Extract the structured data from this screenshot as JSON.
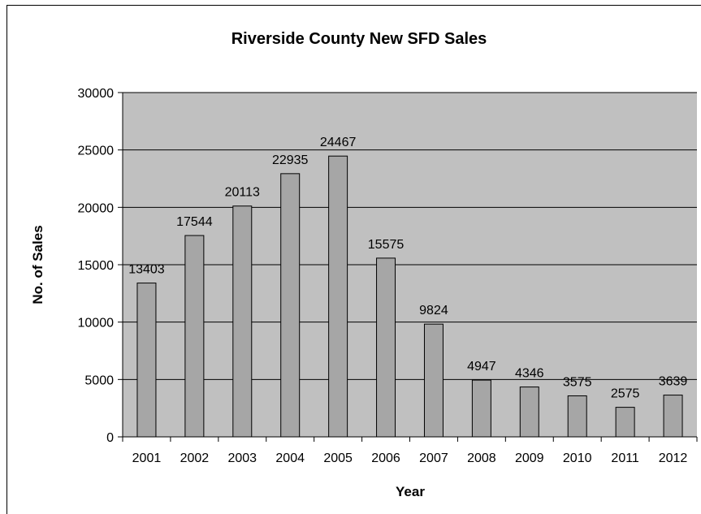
{
  "chart_data": {
    "type": "bar",
    "title": "Riverside County New SFD Sales",
    "xlabel": "Year",
    "ylabel": "No. of Sales",
    "categories": [
      "2001",
      "2002",
      "2003",
      "2004",
      "2005",
      "2006",
      "2007",
      "2008",
      "2009",
      "2010",
      "2011",
      "2012"
    ],
    "values": [
      13403,
      17544,
      20113,
      22935,
      24467,
      15575,
      9824,
      4947,
      4346,
      3575,
      2575,
      3639
    ],
    "ylim": [
      0,
      30000
    ],
    "yticks": [
      0,
      5000,
      10000,
      15000,
      20000,
      25000,
      30000
    ],
    "grid": true,
    "legend": "none",
    "colors": {
      "plot_bg": "#c0c0c0",
      "bar": "#a6a6a6",
      "bar_stroke": "#000000",
      "grid": "#000000"
    }
  }
}
